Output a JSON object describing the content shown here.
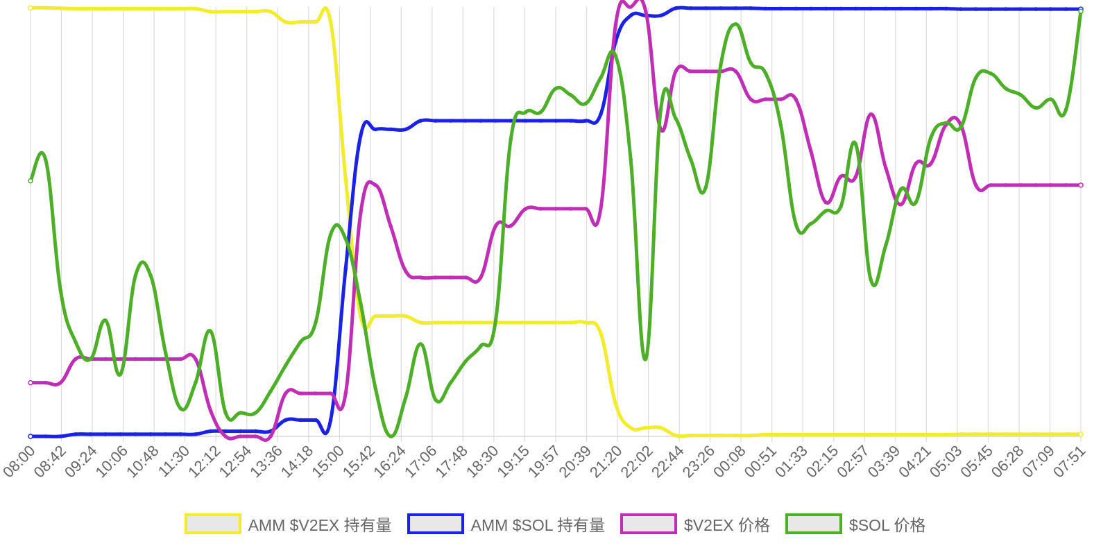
{
  "chart_data": {
    "type": "line",
    "title": "",
    "xlabel": "",
    "ylabel": "",
    "y_axis_labels_shown": false,
    "grid": "vertical",
    "legend_position": "bottom-center",
    "ylim": [
      0,
      100
    ],
    "tick_labels": [
      "08:00",
      "08:42",
      "09:24",
      "10:06",
      "10:48",
      "11:30",
      "12:12",
      "12:54",
      "13:36",
      "14:18",
      "15:00",
      "15:42",
      "16:24",
      "17:06",
      "17:48",
      "18:30",
      "19:15",
      "19:57",
      "20:39",
      "21:20",
      "22:02",
      "22:44",
      "23:26",
      "00:08",
      "00:51",
      "01:33",
      "02:15",
      "02:57",
      "03:39",
      "04:21",
      "05:03",
      "05:45",
      "06:28",
      "07:09",
      "07:51"
    ],
    "x_index_range": [
      0,
      70
    ],
    "series": [
      {
        "name": "AMM $V2EX 持有量",
        "color": "#f2ec2c",
        "points": [
          [
            0,
            99.8
          ],
          [
            1,
            99.8
          ],
          [
            2,
            99.7
          ],
          [
            3,
            99.6
          ],
          [
            4,
            99.6
          ],
          [
            5,
            99.6
          ],
          [
            6,
            99.6
          ],
          [
            7,
            99.6
          ],
          [
            8,
            99.6
          ],
          [
            9,
            99.6
          ],
          [
            10,
            99.6
          ],
          [
            11,
            99.6
          ],
          [
            12,
            98.9
          ],
          [
            13,
            98.9
          ],
          [
            14,
            98.9
          ],
          [
            15,
            98.9
          ],
          [
            16,
            98.9
          ],
          [
            17,
            96.5
          ],
          [
            18,
            96.5
          ],
          [
            19,
            96.5
          ],
          [
            20,
            96.5
          ],
          [
            21,
            60.0
          ],
          [
            22,
            28.0
          ],
          [
            23,
            28.0
          ],
          [
            24,
            28.0
          ],
          [
            25,
            28.0
          ],
          [
            26,
            26.5
          ],
          [
            27,
            26.5
          ],
          [
            28,
            26.5
          ],
          [
            29,
            26.5
          ],
          [
            30,
            26.5
          ],
          [
            31,
            26.5
          ],
          [
            32,
            26.5
          ],
          [
            33,
            26.5
          ],
          [
            34,
            26.5
          ],
          [
            35,
            26.5
          ],
          [
            36,
            26.5
          ],
          [
            37,
            26.5
          ],
          [
            38,
            24.0
          ],
          [
            39,
            7.5
          ],
          [
            40,
            2.0
          ],
          [
            41,
            2.0
          ],
          [
            42,
            2.0
          ],
          [
            43,
            0.2
          ],
          [
            44,
            0.2
          ],
          [
            45,
            0.2
          ],
          [
            46,
            0.2
          ],
          [
            47,
            0.2
          ],
          [
            48,
            0.2
          ],
          [
            49,
            0.4
          ],
          [
            50,
            0.4
          ],
          [
            51,
            0.4
          ],
          [
            52,
            0.4
          ],
          [
            53,
            0.4
          ],
          [
            54,
            0.4
          ],
          [
            55,
            0.4
          ],
          [
            56,
            0.4
          ],
          [
            57,
            0.4
          ],
          [
            58,
            0.4
          ],
          [
            59,
            0.4
          ],
          [
            60,
            0.4
          ],
          [
            61,
            0.4
          ],
          [
            62,
            0.5
          ],
          [
            63,
            0.5
          ],
          [
            64,
            0.5
          ],
          [
            65,
            0.5
          ],
          [
            66,
            0.5
          ],
          [
            67,
            0.5
          ],
          [
            68,
            0.5
          ],
          [
            69,
            0.5
          ],
          [
            70,
            0.5
          ]
        ]
      },
      {
        "name": "AMM $SOL 持有量",
        "color": "#1a22e6",
        "points": [
          [
            0,
            0.0
          ],
          [
            1,
            0.0
          ],
          [
            2,
            0.0
          ],
          [
            3,
            0.5
          ],
          [
            4,
            0.5
          ],
          [
            5,
            0.5
          ],
          [
            6,
            0.5
          ],
          [
            7,
            0.5
          ],
          [
            8,
            0.5
          ],
          [
            9,
            0.5
          ],
          [
            10,
            0.5
          ],
          [
            11,
            0.5
          ],
          [
            12,
            1.2
          ],
          [
            13,
            1.2
          ],
          [
            14,
            1.2
          ],
          [
            15,
            1.2
          ],
          [
            16,
            1.2
          ],
          [
            17,
            3.8
          ],
          [
            18,
            3.8
          ],
          [
            19,
            3.8
          ],
          [
            20,
            3.8
          ],
          [
            21,
            39.0
          ],
          [
            22,
            70.0
          ],
          [
            23,
            71.5
          ],
          [
            24,
            71.5
          ],
          [
            25,
            71.5
          ],
          [
            26,
            73.5
          ],
          [
            27,
            73.5
          ],
          [
            28,
            73.5
          ],
          [
            29,
            73.5
          ],
          [
            30,
            73.5
          ],
          [
            31,
            73.5
          ],
          [
            32,
            73.5
          ],
          [
            33,
            73.5
          ],
          [
            34,
            73.5
          ],
          [
            35,
            73.5
          ],
          [
            36,
            73.5
          ],
          [
            37,
            73.5
          ],
          [
            38,
            75.0
          ],
          [
            39,
            92.0
          ],
          [
            40,
            98.0
          ],
          [
            41,
            98.0
          ],
          [
            42,
            98.0
          ],
          [
            43,
            99.7
          ],
          [
            44,
            99.7
          ],
          [
            45,
            99.7
          ],
          [
            46,
            99.7
          ],
          [
            47,
            99.7
          ],
          [
            48,
            99.7
          ],
          [
            49,
            99.6
          ],
          [
            50,
            99.6
          ],
          [
            51,
            99.6
          ],
          [
            52,
            99.6
          ],
          [
            53,
            99.6
          ],
          [
            54,
            99.6
          ],
          [
            55,
            99.6
          ],
          [
            56,
            99.6
          ],
          [
            57,
            99.6
          ],
          [
            58,
            99.6
          ],
          [
            59,
            99.6
          ],
          [
            60,
            99.6
          ],
          [
            61,
            99.6
          ],
          [
            62,
            99.5
          ],
          [
            63,
            99.5
          ],
          [
            64,
            99.5
          ],
          [
            65,
            99.5
          ],
          [
            66,
            99.5
          ],
          [
            67,
            99.5
          ],
          [
            68,
            99.5
          ],
          [
            69,
            99.5
          ],
          [
            70,
            99.5
          ]
        ]
      },
      {
        "name": "$V2EX 价格",
        "color": "#c02eb6",
        "points": [
          [
            0,
            12.5
          ],
          [
            1,
            12.5
          ],
          [
            2,
            12.5
          ],
          [
            3,
            18.0
          ],
          [
            4,
            18.0
          ],
          [
            5,
            18.0
          ],
          [
            6,
            18.0
          ],
          [
            7,
            18.0
          ],
          [
            8,
            18.0
          ],
          [
            9,
            18.0
          ],
          [
            10,
            18.0
          ],
          [
            11,
            18.0
          ],
          [
            12,
            6.0
          ],
          [
            13,
            0.0
          ],
          [
            14,
            0.0
          ],
          [
            15,
            0.0
          ],
          [
            16,
            0.0
          ],
          [
            17,
            10.0
          ],
          [
            18,
            10.0
          ],
          [
            19,
            10.0
          ],
          [
            20,
            10.0
          ],
          [
            21,
            10.0
          ],
          [
            22,
            52.0
          ],
          [
            23,
            58.5
          ],
          [
            24,
            49.0
          ],
          [
            25,
            38.5
          ],
          [
            26,
            37.0
          ],
          [
            27,
            37.0
          ],
          [
            28,
            37.0
          ],
          [
            29,
            37.0
          ],
          [
            30,
            37.0
          ],
          [
            31,
            49.0
          ],
          [
            32,
            49.0
          ],
          [
            33,
            53.0
          ],
          [
            34,
            53.0
          ],
          [
            35,
            53.0
          ],
          [
            36,
            53.0
          ],
          [
            37,
            53.0
          ],
          [
            38,
            53.0
          ],
          [
            39,
            96.0
          ],
          [
            40,
            100.0
          ],
          [
            41,
            99.0
          ],
          [
            42,
            71.5
          ],
          [
            43,
            85.0
          ],
          [
            44,
            85.0
          ],
          [
            45,
            85.0
          ],
          [
            46,
            85.0
          ],
          [
            47,
            85.0
          ],
          [
            48,
            78.5
          ],
          [
            49,
            78.5
          ],
          [
            50,
            78.5
          ],
          [
            51,
            78.5
          ],
          [
            52,
            66.5
          ],
          [
            53,
            54.5
          ],
          [
            54,
            60.5
          ],
          [
            55,
            60.5
          ],
          [
            56,
            75.0
          ],
          [
            57,
            62.5
          ],
          [
            58,
            54.0
          ],
          [
            59,
            63.5
          ],
          [
            60,
            63.5
          ],
          [
            61,
            72.5
          ],
          [
            62,
            72.5
          ],
          [
            63,
            58.5
          ],
          [
            64,
            58.5
          ],
          [
            65,
            58.5
          ],
          [
            66,
            58.5
          ],
          [
            67,
            58.5
          ],
          [
            68,
            58.5
          ],
          [
            69,
            58.5
          ],
          [
            70,
            58.5
          ]
        ]
      },
      {
        "name": "$SOL 价格",
        "color": "#4caf27",
        "points": [
          [
            0,
            59.5
          ],
          [
            1,
            64.5
          ],
          [
            2,
            34.0
          ],
          [
            3,
            22.0
          ],
          [
            4,
            18.0
          ],
          [
            5,
            27.0
          ],
          [
            6,
            14.5
          ],
          [
            7,
            37.5
          ],
          [
            8,
            37.5
          ],
          [
            9,
            19.5
          ],
          [
            10,
            6.5
          ],
          [
            11,
            12.5
          ],
          [
            12,
            24.5
          ],
          [
            13,
            5.5
          ],
          [
            14,
            5.5
          ],
          [
            15,
            5.5
          ],
          [
            16,
            10.5
          ],
          [
            17,
            16.5
          ],
          [
            18,
            22.0
          ],
          [
            19,
            26.5
          ],
          [
            20,
            47.0
          ],
          [
            21,
            46.0
          ],
          [
            22,
            31.0
          ],
          [
            23,
            11.0
          ],
          [
            24,
            0.0
          ],
          [
            25,
            9.0
          ],
          [
            26,
            21.5
          ],
          [
            27,
            8.5
          ],
          [
            28,
            12.5
          ],
          [
            29,
            17.5
          ],
          [
            30,
            21.0
          ],
          [
            31,
            27.0
          ],
          [
            32,
            69.0
          ],
          [
            33,
            75.5
          ],
          [
            34,
            75.5
          ],
          [
            35,
            81.0
          ],
          [
            36,
            79.5
          ],
          [
            37,
            77.5
          ],
          [
            38,
            83.5
          ],
          [
            39,
            88.5
          ],
          [
            40,
            64.5
          ],
          [
            41,
            18.0
          ],
          [
            42,
            76.0
          ],
          [
            43,
            74.0
          ],
          [
            44,
            64.5
          ],
          [
            45,
            58.0
          ],
          [
            46,
            86.5
          ],
          [
            47,
            96.0
          ],
          [
            48,
            87.0
          ],
          [
            49,
            84.5
          ],
          [
            50,
            72.5
          ],
          [
            51,
            49.5
          ],
          [
            52,
            49.5
          ],
          [
            53,
            52.5
          ],
          [
            54,
            53.5
          ],
          [
            55,
            68.0
          ],
          [
            56,
            36.5
          ],
          [
            57,
            44.5
          ],
          [
            58,
            57.5
          ],
          [
            59,
            54.5
          ],
          [
            60,
            69.5
          ],
          [
            61,
            73.0
          ],
          [
            62,
            72.0
          ],
          [
            63,
            83.5
          ],
          [
            64,
            84.5
          ],
          [
            65,
            81.0
          ],
          [
            66,
            79.5
          ],
          [
            67,
            76.5
          ],
          [
            68,
            78.5
          ],
          [
            69,
            76.0
          ],
          [
            70,
            99.0
          ]
        ]
      }
    ]
  }
}
